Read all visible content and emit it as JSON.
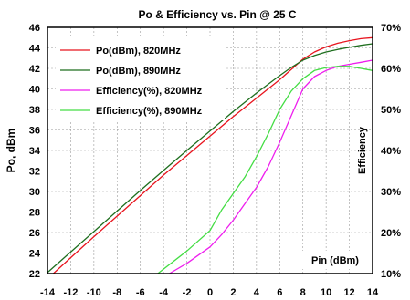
{
  "chart_data": {
    "type": "line",
    "title": "Po & Efficiency vs. Pin  @ 25 C",
    "xlabel": "Pin (dBm)",
    "ylabel_left": "Po, dBm",
    "ylabel_right": "Efficiency",
    "xlim": [
      -14,
      14
    ],
    "ylim_left": [
      22,
      46
    ],
    "ylim_right": [
      10,
      70
    ],
    "x_ticks": [
      "-14",
      "-12",
      "-10",
      "-8",
      "-6",
      "-4",
      "-2",
      "0",
      "2",
      "4",
      "6",
      "8",
      "10",
      "12",
      "14"
    ],
    "y_left_ticks": [
      "22",
      "24",
      "26",
      "28",
      "30",
      "32",
      "34",
      "36",
      "38",
      "40",
      "42",
      "44",
      "46"
    ],
    "y_right_ticks": [
      "10%",
      "20%",
      "30%",
      "40%",
      "50%",
      "60%",
      "70%"
    ],
    "grid": true,
    "legend_position": "top-left",
    "series": [
      {
        "name": "Po(dBm), 820MHz",
        "axis": "left",
        "color": "#e8141e",
        "x": [
          -13.5,
          -12,
          -10,
          -8,
          -6,
          -4,
          -2,
          0,
          2,
          4,
          6,
          7,
          8,
          9,
          10,
          11,
          12,
          13,
          14
        ],
        "y": [
          22,
          23.55,
          25.6,
          27.6,
          29.6,
          31.6,
          33.5,
          35.4,
          37.3,
          39.1,
          40.9,
          41.9,
          42.9,
          43.6,
          44.1,
          44.45,
          44.7,
          44.9,
          45.0
        ]
      },
      {
        "name": "Po(dBm), 890MHz",
        "axis": "left",
        "color": "#1e6e1e",
        "x": [
          -14,
          -12,
          -10,
          -8,
          -6,
          -4,
          -2,
          0,
          2,
          4,
          6,
          7,
          8,
          9,
          10,
          11,
          12,
          13,
          14
        ],
        "y": [
          22.1,
          24.1,
          26.1,
          28.1,
          30.1,
          32.05,
          34.0,
          35.9,
          37.8,
          39.6,
          41.3,
          42.1,
          42.8,
          43.25,
          43.6,
          43.85,
          44.05,
          44.25,
          44.4
        ]
      },
      {
        "name": "Efficiency(%), 820MHz",
        "axis": "right",
        "color": "#ee1eee",
        "x": [
          -3.5,
          -2,
          0,
          1,
          2,
          3,
          4,
          5,
          6,
          7,
          8,
          9,
          10,
          11,
          12,
          13,
          14
        ],
        "y": [
          10,
          12.5,
          16.5,
          19.5,
          23,
          27,
          31,
          36,
          42,
          48.5,
          55,
          58,
          59.5,
          60.5,
          61,
          61.5,
          62
        ]
      },
      {
        "name": "Efficiency(%), 890MHz",
        "axis": "right",
        "color": "#44dd44",
        "x": [
          -4.5,
          -2,
          0,
          1,
          2,
          3,
          4,
          5,
          6,
          7,
          8,
          9,
          10,
          11,
          12,
          13,
          14
        ],
        "y": [
          10,
          15.5,
          20.5,
          25.5,
          29.5,
          33.5,
          38.5,
          44,
          50,
          54.5,
          57.5,
          59.5,
          60.2,
          60.5,
          60.5,
          60,
          59.5
        ]
      }
    ]
  }
}
